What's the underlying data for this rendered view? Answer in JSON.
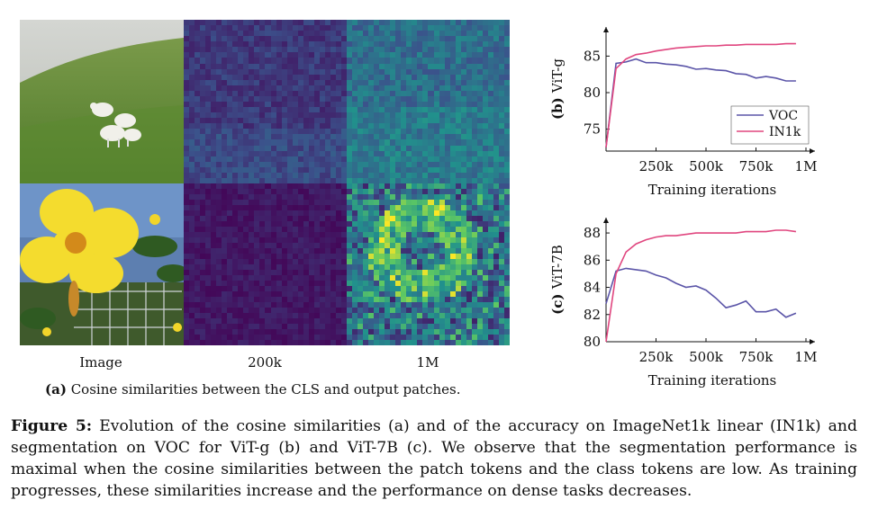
{
  "panel_a": {
    "columns": [
      "Image",
      "200k",
      "1M"
    ],
    "subcaption_tag": "(a)",
    "subcaption_text": "Cosine similarities between the CLS and output patches."
  },
  "chart_data": [
    {
      "type": "line",
      "ylabel": "(b) ViT-g",
      "xlabel": "Training iterations",
      "xticks": [
        "250k",
        "500k",
        "750k",
        "1M"
      ],
      "yticks": [
        75,
        80,
        85
      ],
      "xlim": [
        0,
        1000
      ],
      "ylim": [
        72,
        88
      ],
      "legend_position": "bottom-right",
      "series": [
        {
          "name": "VOC",
          "color": "#5b55a8",
          "x": [
            0,
            50,
            100,
            150,
            200,
            250,
            300,
            350,
            400,
            450,
            500,
            550,
            600,
            650,
            700,
            750,
            800,
            850,
            900,
            950
          ],
          "y": [
            72.5,
            84.0,
            84.2,
            84.6,
            84.1,
            84.1,
            83.9,
            83.8,
            83.6,
            83.2,
            83.3,
            83.1,
            83.0,
            82.6,
            82.5,
            82.0,
            82.2,
            82.0,
            81.6,
            81.6
          ]
        },
        {
          "name": "IN1k",
          "color": "#e0467f",
          "x": [
            0,
            50,
            100,
            150,
            200,
            250,
            300,
            350,
            400,
            450,
            500,
            550,
            600,
            650,
            700,
            750,
            800,
            850,
            900,
            950
          ],
          "y": [
            72.5,
            83.3,
            84.6,
            85.2,
            85.4,
            85.7,
            85.9,
            86.1,
            86.2,
            86.3,
            86.4,
            86.4,
            86.5,
            86.5,
            86.6,
            86.6,
            86.6,
            86.6,
            86.7,
            86.7
          ]
        }
      ]
    },
    {
      "type": "line",
      "ylabel": "(c) ViT-7B",
      "xlabel": "Training iterations",
      "xticks": [
        "250k",
        "500k",
        "750k",
        "1M"
      ],
      "yticks": [
        80,
        82,
        84,
        86,
        88
      ],
      "xlim": [
        0,
        1000
      ],
      "ylim": [
        80,
        88.6
      ],
      "series": [
        {
          "name": "VOC",
          "color": "#5b55a8",
          "x": [
            0,
            50,
            100,
            150,
            200,
            250,
            300,
            350,
            400,
            450,
            500,
            550,
            600,
            650,
            700,
            750,
            800,
            850,
            900,
            950
          ],
          "y": [
            82.8,
            85.2,
            85.4,
            85.3,
            85.2,
            84.9,
            84.7,
            84.3,
            84.0,
            84.1,
            83.8,
            83.2,
            82.5,
            82.7,
            83.0,
            82.2,
            82.2,
            82.4,
            81.8,
            82.1
          ]
        },
        {
          "name": "IN1k",
          "color": "#e0467f",
          "x": [
            0,
            50,
            100,
            150,
            200,
            250,
            300,
            350,
            400,
            450,
            500,
            550,
            600,
            650,
            700,
            750,
            800,
            850,
            900,
            950
          ],
          "y": [
            80.0,
            85.0,
            86.6,
            87.2,
            87.5,
            87.7,
            87.8,
            87.8,
            87.9,
            88.0,
            88.0,
            88.0,
            88.0,
            88.0,
            88.1,
            88.1,
            88.1,
            88.2,
            88.2,
            88.1
          ]
        }
      ]
    }
  ],
  "caption": {
    "label": "Figure 5:",
    "text": "Evolution of the cosine similarities (a) and of the accuracy on ImageNet1k linear (IN1k) and segmentation on VOC for ViT-g (b) and ViT-7B (c). We observe that the segmentation performance is maximal when the cosine similarities between the patch tokens and the class tokens are low. As training progresses, these similarities increase and the performance on dense tasks decreases."
  }
}
